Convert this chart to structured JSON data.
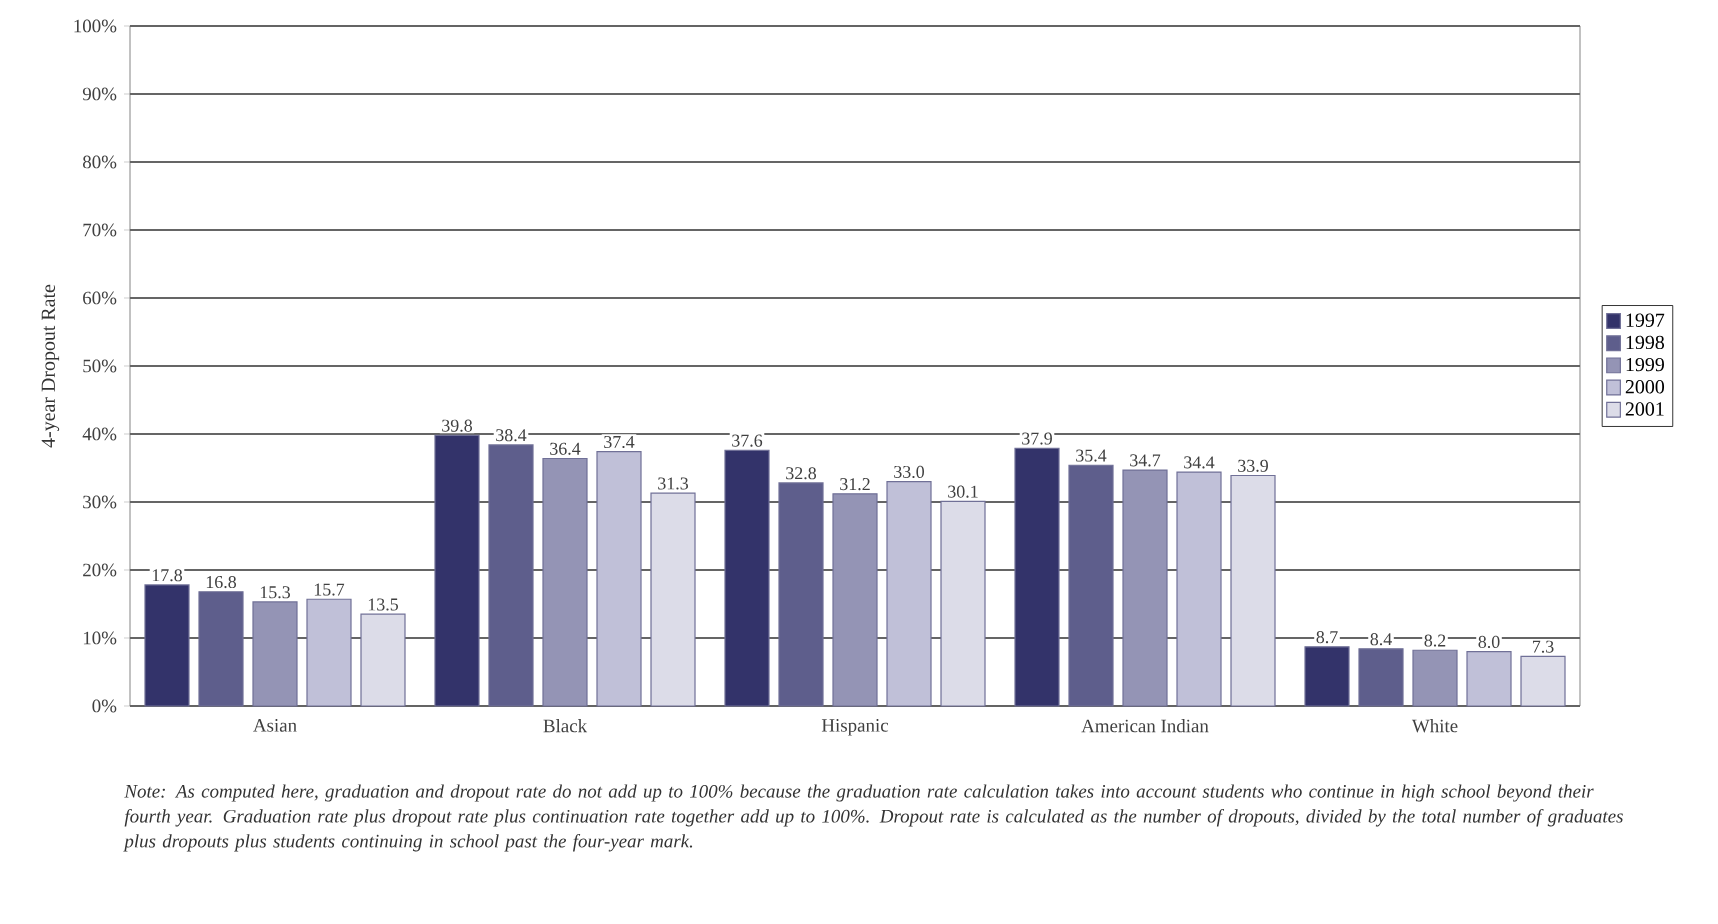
{
  "chart_data": {
    "type": "bar",
    "ylabel": "4-year Dropout Rate",
    "categories": [
      "Asian",
      "Black",
      "Hispanic",
      "American Indian",
      "White"
    ],
    "series": [
      {
        "name": "1997",
        "color": "#33336a",
        "values": [
          17.8,
          39.8,
          37.6,
          37.9,
          8.7
        ],
        "value_labels": [
          "17.8",
          "39.8",
          "37.6",
          "37.9",
          "8.7"
        ]
      },
      {
        "name": "1998",
        "color": "#5e5e8c",
        "values": [
          16.8,
          38.4,
          32.8,
          35.4,
          8.4
        ],
        "value_labels": [
          "16.8",
          "38.4",
          "32.8",
          "35.4",
          "8.4"
        ]
      },
      {
        "name": "1999",
        "color": "#9494b5",
        "values": [
          15.3,
          36.4,
          31.2,
          34.7,
          8.2
        ],
        "value_labels": [
          "15.3",
          "36.4",
          "31.2",
          "34.7",
          "8.2"
        ]
      },
      {
        "name": "2000",
        "color": "#c0c0d8",
        "values": [
          15.7,
          37.4,
          33.0,
          34.4,
          8.0
        ],
        "value_labels": [
          "15.7",
          "37.4",
          "33.0",
          "34.4",
          "8.0"
        ]
      },
      {
        "name": "2001",
        "color": "#dcdce8",
        "values": [
          13.5,
          31.3,
          30.1,
          33.9,
          7.3
        ],
        "value_labels": [
          "13.5",
          "31.3",
          "30.1",
          "33.9",
          "7.3"
        ]
      }
    ],
    "ylim": [
      0,
      100
    ],
    "yticks": [
      {
        "value": 0,
        "label": "0%"
      },
      {
        "value": 10,
        "label": "10%"
      },
      {
        "value": 20,
        "label": "20%"
      },
      {
        "value": 30,
        "label": "30%"
      },
      {
        "value": 40,
        "label": "40%"
      },
      {
        "value": 50,
        "label": "50%"
      },
      {
        "value": 60,
        "label": "60%"
      },
      {
        "value": 70,
        "label": "70%"
      },
      {
        "value": 80,
        "label": "80%"
      },
      {
        "value": 90,
        "label": "90%"
      },
      {
        "value": 100,
        "label": "100%"
      }
    ],
    "grid": "y",
    "legend": "right",
    "annotations": [
      "Note: As computed here, graduation and dropout rate do not add up to 100% because the graduation rate calculation takes into account students who continue in high school beyond their fourth year. Graduation rate plus dropout rate plus continuation rate together add up to 100%. Dropout rate is calculated as the number of dropouts, divided by the total number of graduates plus dropouts plus students continuing in school past the four-year mark."
    ]
  }
}
